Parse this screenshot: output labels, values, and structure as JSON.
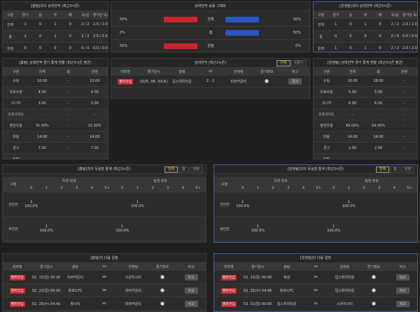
{
  "h2h_home": {
    "title": "[홈팀]과의 상대전적 (최근3시즌)",
    "headers": [
      "구분",
      "경기",
      "승",
      "무",
      "패",
      "득/실",
      "경기당 득/실"
    ],
    "rows": [
      [
        "전체",
        "1",
        "0",
        "1",
        "0",
        "2 / 2",
        "2.0 / 2.0"
      ],
      [
        "홈",
        "1",
        "0",
        "1",
        "0",
        "2 / 2",
        "2.0 / 2.0"
      ],
      [
        "원정",
        "0",
        "0",
        "0",
        "0",
        "0 / 0",
        "0.0 / 0.0"
      ]
    ]
  },
  "h2h_graph": {
    "title": "상대전적 승률 그래프",
    "rows": [
      {
        "label": "전체",
        "home": {
          "value": 50,
          "label": "50%"
        },
        "away": {
          "value": 50,
          "label": "50%"
        }
      },
      {
        "label": "홈",
        "home": {
          "value": 0,
          "label": "0%"
        },
        "away": {
          "value": 50,
          "label": "50%"
        }
      },
      {
        "label": "원정",
        "home": {
          "value": 50,
          "label": "50%"
        },
        "away": {
          "value": 0,
          "label": "0%"
        }
      }
    ]
  },
  "h2h_away": {
    "title": "[원정팀]과의 상대전적 (최근3시즌)",
    "headers": [
      "구분",
      "경기",
      "승",
      "무",
      "패",
      "득/실",
      "경기당 득/실"
    ],
    "rows": [
      [
        "전체",
        "1",
        "0",
        "1",
        "0",
        "2 / 2",
        "2.0 / 2.0"
      ],
      [
        "홈",
        "0",
        "0",
        "0",
        "0",
        "0 / 0",
        "0.0 / 0.0"
      ],
      [
        "원정",
        "1",
        "0",
        "1",
        "0",
        "2 / 2",
        "2.0 / 2.0"
      ]
    ]
  },
  "stats_home": {
    "title": "[홈팀] 상대전적 경기 통계 현황 (최근3시즌 평균)",
    "headers": [
      "구분",
      "전체",
      "홈",
      "원정"
    ],
    "rows": [
      [
        "슈팅",
        "10.00",
        "-",
        "10.00"
      ],
      [
        "유효슈팅",
        "4.00",
        "-",
        "4.00"
      ],
      [
        "코너킥",
        "3.00",
        "-",
        "3.00"
      ],
      [
        "오프사이드",
        "-",
        "-",
        "-"
      ],
      [
        "볼점유율",
        "31.00%",
        "-",
        "31.00%"
      ],
      [
        "파울",
        "14.00",
        "-",
        "14.00"
      ],
      [
        "경고",
        "7.00",
        "-",
        "7.00"
      ],
      [
        "퇴장",
        "-",
        "-",
        "-"
      ]
    ]
  },
  "h2h_matches": {
    "title": "상대전적 (최근3시즌)",
    "tabs": [
      "전체",
      "5경기"
    ],
    "headers": [
      "대회명",
      "경기일시",
      "홈팀",
      "vs",
      "원정팀",
      "경기정보",
      "비고"
    ],
    "rows": [
      {
        "league": "챔피언십",
        "date": "2025. 08. 30(토)",
        "home": "입스위치타운",
        "vs": "2 - 2",
        "away": "미버커운티",
        "note": "결과"
      }
    ]
  },
  "stats_away": {
    "title": "[원정팀] 상대전적 경기 통계 현황 (최근3시즌 평균)",
    "headers": [
      "구분",
      "전체",
      "홈",
      "원정"
    ],
    "rows": [
      [
        "슈팅",
        "18.00",
        "18.00",
        "-"
      ],
      [
        "유효슈팅",
        "5.00",
        "5.00",
        "-"
      ],
      [
        "코너킥",
        "6.00",
        "6.00",
        "-"
      ],
      [
        "오프사이드",
        "-",
        "-",
        "-"
      ],
      [
        "볼점유율",
        "69.00%",
        "69.00%",
        "-"
      ],
      [
        "파울",
        "14.00",
        "14.00",
        "-"
      ],
      [
        "경고",
        "2.00",
        "2.00",
        "-"
      ],
      [
        "퇴장",
        "-",
        "-",
        "-"
      ]
    ]
  },
  "goals_home": {
    "title": "[홈팀]과의 득실점 통계 (최근3시즌)",
    "tabs": [
      "전체",
      "홈",
      "원정"
    ],
    "headers": [
      "구분",
      "득점 분포",
      "실점 분포"
    ],
    "score_cols": [
      "0",
      "1",
      "2",
      "3",
      "4",
      "5+"
    ],
    "concede_cols": [
      "0",
      "1",
      "2",
      "3",
      "4",
      "5+"
    ],
    "rows": [
      {
        "label": "전반전",
        "cells": [
          {
            "count": "1",
            "pct": "100.0%"
          },
          null,
          null,
          null,
          null,
          null,
          null,
          {
            "count": "1",
            "pct": "100.0%"
          },
          null,
          null,
          null,
          null
        ]
      },
      {
        "label": "후반전",
        "cells": [
          null,
          {
            "count": "1",
            "pct": "100.0%"
          },
          null,
          null,
          null,
          null,
          {
            "count": "1",
            "pct": "100.0%"
          },
          null,
          null,
          null,
          null,
          null
        ]
      }
    ]
  },
  "goals_away": {
    "title": "[원정팀]과의 득실점 통계 (최근3시즌)",
    "tabs": [
      "전체",
      "홈",
      "원정"
    ],
    "headers": [
      "구분",
      "득점 분포",
      "실점 분포"
    ],
    "score_cols": [
      "0",
      "1",
      "2",
      "3",
      "4",
      "5+"
    ],
    "concede_cols": [
      "0",
      "1",
      "2",
      "3",
      "4",
      "5+"
    ],
    "rows": [
      {
        "label": "전반전",
        "cells": [
          {
            "count": "1",
            "pct": "100.0%"
          },
          null,
          null,
          null,
          null,
          null,
          null,
          {
            "count": "1",
            "pct": "100.0%"
          },
          null,
          null,
          null,
          null
        ]
      },
      {
        "label": "후반전",
        "cells": [
          null,
          {
            "count": "1",
            "pct": "100.0%"
          },
          null,
          null,
          null,
          null,
          {
            "count": "1",
            "pct": "100.0%"
          },
          null,
          null,
          null,
          null,
          null
        ]
      }
    ]
  },
  "next_home": {
    "title": "[홈팀]의 다음 일정",
    "headers": [
      "대회명",
      "경기일시",
      "홈팀",
      "vs",
      "원정팀",
      "경기정보",
      "비고"
    ],
    "rows": [
      {
        "league": "챔피언십",
        "date": "02. 15(일) 00:00",
        "home": "미버커운티",
        "vs": "vs",
        "away": "스완지시티",
        "note": "비교"
      },
      {
        "league": "챔피언십",
        "date": "02. 22(일) 00:00",
        "home": "왓포드FC",
        "vs": "vs",
        "away": "미버커운티",
        "note": "비교"
      },
      {
        "league": "챔피언십",
        "date": "02. 25(수) 04:45",
        "home": "헐시티",
        "vs": "vs",
        "away": "미버커운티",
        "note": "비교"
      }
    ]
  },
  "next_away": {
    "title": "[원정팀]의 다음 일정",
    "headers": [
      "대회명",
      "경기일시",
      "홈팀",
      "vs",
      "원정팀",
      "경기정보",
      "비고"
    ],
    "rows": [
      {
        "league": "챔피언십",
        "date": "02. 22(일) 00:00",
        "home": "렉섬",
        "vs": "vs",
        "away": "입스위치타운",
        "note": "비교"
      },
      {
        "league": "챔피언십",
        "date": "02. 25(수) 04:45",
        "home": "왓포드FC",
        "vs": "vs",
        "away": "입스위치타운",
        "note": "비교"
      },
      {
        "league": "챔피언십",
        "date": "03. 01(일) 00:00",
        "home": "입스위치타운",
        "vs": "vs",
        "away": "스완지시티",
        "note": "비교"
      }
    ]
  }
}
